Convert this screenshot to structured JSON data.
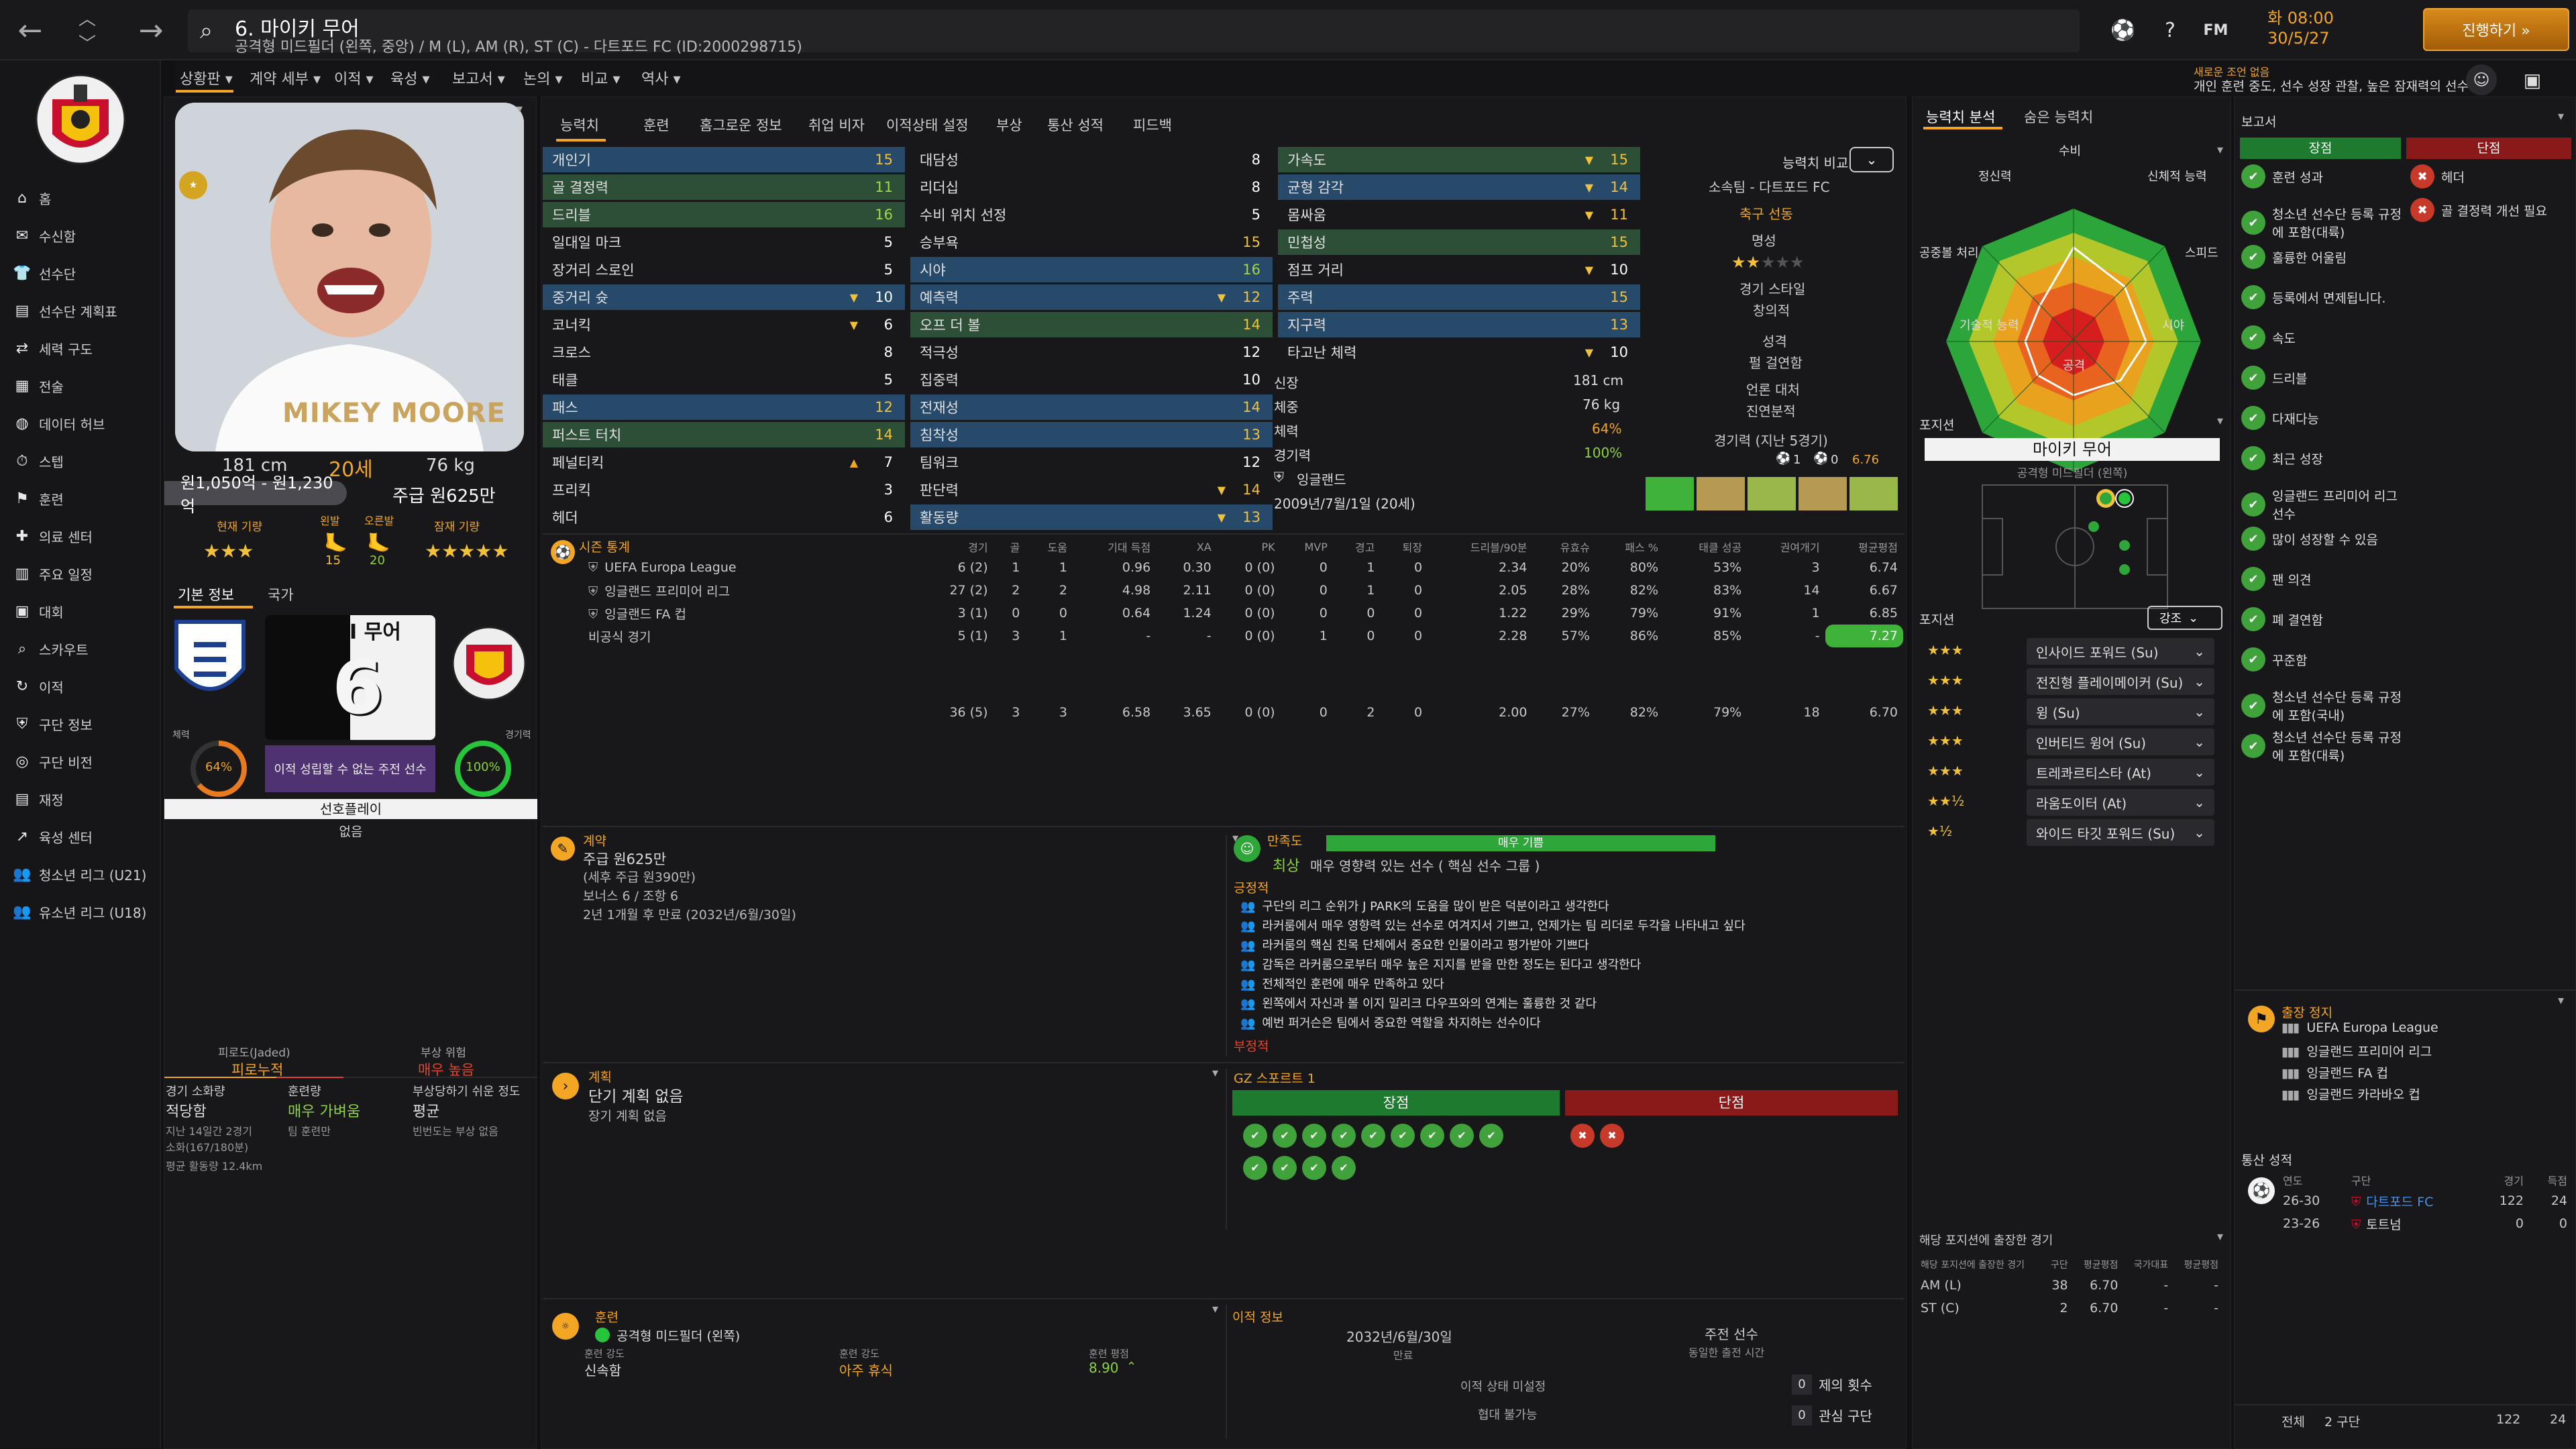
{
  "topbar": {
    "title": "6. 마이키 무어",
    "subtitle": "공격형 미드필더 (왼쪽, 중앙) / M (L), AM (R), ST (C) - 다트포드 FC (ID:2000298715)",
    "icons": {
      "fm_label": "FM"
    },
    "clock_time": "화 08:00",
    "clock_date": "30/5/27",
    "continue_label": "진행하기 »",
    "notice_title": "새로운 조언 없음",
    "notice_text": "개인 훈련 중도, 선수 성장 관찰, 높은 잠재력의 선수"
  },
  "subnav": [
    "상황판 ▾",
    "계약 세부 ▾",
    "이적 ▾",
    "육성 ▾",
    "보고서 ▾",
    "논의 ▾",
    "비교 ▾",
    "역사 ▾"
  ],
  "sidebar": [
    {
      "icon": "⌂",
      "label": "홈"
    },
    {
      "icon": "✉",
      "label": "수신함"
    },
    {
      "icon": "👕",
      "label": "선수단"
    },
    {
      "icon": "▤",
      "label": "선수단 계획표"
    },
    {
      "icon": "⇄",
      "label": "세력 구도"
    },
    {
      "icon": "▦",
      "label": "전술"
    },
    {
      "icon": "◍",
      "label": "데이터 허브"
    },
    {
      "icon": "⏱",
      "label": "스텝"
    },
    {
      "icon": "⚑",
      "label": "훈련"
    },
    {
      "icon": "✚",
      "label": "의료 센터"
    },
    {
      "icon": "▥",
      "label": "주요 일정"
    },
    {
      "icon": "▣",
      "label": "대회"
    },
    {
      "icon": "⌕",
      "label": "스카우트"
    },
    {
      "icon": "↻",
      "label": "이적"
    },
    {
      "icon": "⛨",
      "label": "구단 정보"
    },
    {
      "icon": "◎",
      "label": "구단 비전"
    },
    {
      "icon": "▤",
      "label": "재정"
    },
    {
      "icon": "↗",
      "label": "육성 센터"
    },
    {
      "icon": "👥",
      "label": "청소년 리그 (U21)"
    },
    {
      "icon": "👥",
      "label": "유소년 리그 (U18)"
    }
  ],
  "profile": {
    "photo_caption": "MIKEY MOORE",
    "height": "181 cm",
    "age": "20세",
    "weight": "76 kg",
    "value": "원1,050억 - 원1,230억",
    "wage": "주급 원625만",
    "current_ability": "현재 기량",
    "potential_ability": "잠재 기량",
    "left_foot": "왼발",
    "right_foot": "오른발",
    "left_val": "15",
    "right_val": "20",
    "ca_stars": "★★★",
    "pa_stars": "★★★★★",
    "tab_basic": "기본 정보",
    "tab_nation": "국가",
    "shirt_name": "I 무어",
    "shirt_num": "6",
    "fitness_label": "체력",
    "fitness_val": "64%",
    "sharp_label": "경기력",
    "sharp_val": "100%",
    "status_text": "이적 성립할 수 없는 주전 선수",
    "preferred_label": "선호플레이",
    "preferred_val": "없음",
    "fatigue_title": "피로도(Jaded)",
    "fatigue_val": "피로누적",
    "injury_title": "부상 위험",
    "injury_val": "매우 높음",
    "load_label": "경기 소화량",
    "load_val": "적당함",
    "training_label": "훈련량",
    "training_val": "매우 가벼움",
    "proneness_label": "부상당하기 쉬운 정도",
    "proneness_val": "평균",
    "load_note1": "지난 14일간 2경기",
    "load_note2": "소화(167/180분)",
    "distance": "평균 활동량 12.4km",
    "training_note": "팀 훈련만",
    "proneness_note": "빈번도는 부상 없음"
  },
  "mid": {
    "tabs": [
      "능력치",
      "훈련",
      "홈그로운 정보",
      "취업 비자",
      "이적상태 설정",
      "부상",
      "통산 성적",
      "피드백"
    ],
    "tech": [
      {
        "n": "개인기",
        "v": "15",
        "c": "y",
        "hl": "hl"
      },
      {
        "n": "골 결정력",
        "v": "11",
        "c": "g",
        "hl": "hl2"
      },
      {
        "n": "드리블",
        "v": "16",
        "c": "g",
        "hl": "hl2"
      },
      {
        "n": "일대일 마크",
        "v": "5",
        "c": "w",
        "hl": ""
      },
      {
        "n": "장거리 스로인",
        "v": "5",
        "c": "w",
        "hl": ""
      },
      {
        "n": "중거리 슛",
        "v": "10",
        "c": "w",
        "hl": "hl",
        "a": "▼"
      },
      {
        "n": "코너킥",
        "v": "6",
        "c": "w",
        "hl": "",
        "a": "▼"
      },
      {
        "n": "크로스",
        "v": "8",
        "c": "w",
        "hl": ""
      },
      {
        "n": "태클",
        "v": "5",
        "c": "w",
        "hl": ""
      },
      {
        "n": "패스",
        "v": "12",
        "c": "y",
        "hl": "hl"
      },
      {
        "n": "퍼스트 터치",
        "v": "14",
        "c": "y",
        "hl": "hl2"
      },
      {
        "n": "페널티킥",
        "v": "7",
        "c": "w",
        "hl": "",
        "a": "▲"
      },
      {
        "n": "프리킥",
        "v": "3",
        "c": "w",
        "hl": ""
      },
      {
        "n": "헤더",
        "v": "6",
        "c": "w",
        "hl": ""
      }
    ],
    "mental": [
      {
        "n": "대담성",
        "v": "8",
        "c": "w",
        "hl": ""
      },
      {
        "n": "리더십",
        "v": "8",
        "c": "w",
        "hl": ""
      },
      {
        "n": "수비 위치 선정",
        "v": "5",
        "c": "w",
        "hl": ""
      },
      {
        "n": "승부욕",
        "v": "15",
        "c": "y",
        "hl": ""
      },
      {
        "n": "시야",
        "v": "16",
        "c": "g",
        "hl": "hl"
      },
      {
        "n": "예측력",
        "v": "12",
        "c": "y",
        "hl": "hl",
        "a": "▼"
      },
      {
        "n": "오프 더 볼",
        "v": "14",
        "c": "y",
        "hl": "hl2"
      },
      {
        "n": "적극성",
        "v": "12",
        "c": "w",
        "hl": ""
      },
      {
        "n": "집중력",
        "v": "10",
        "c": "w",
        "hl": ""
      },
      {
        "n": "전재성",
        "v": "14",
        "c": "y",
        "hl": "hl"
      },
      {
        "n": "침착성",
        "v": "13",
        "c": "y",
        "hl": "hl"
      },
      {
        "n": "팀워크",
        "v": "12",
        "c": "w",
        "hl": ""
      },
      {
        "n": "판단력",
        "v": "14",
        "c": "y",
        "hl": "",
        "a": "▼"
      },
      {
        "n": "활동량",
        "v": "13",
        "c": "y",
        "hl": "hl",
        "a": "▼"
      }
    ],
    "physical": [
      {
        "n": "가속도",
        "v": "15",
        "c": "y",
        "hl": "hl2",
        "a": "▼"
      },
      {
        "n": "균형 감각",
        "v": "14",
        "c": "y",
        "hl": "hl",
        "a": "▼"
      },
      {
        "n": "몸싸움",
        "v": "11",
        "c": "y",
        "hl": "",
        "a": "▼"
      },
      {
        "n": "민첩성",
        "v": "15",
        "c": "y",
        "hl": "hl2"
      },
      {
        "n": "점프 거리",
        "v": "10",
        "c": "w",
        "hl": "",
        "a": "▼"
      },
      {
        "n": "주력",
        "v": "15",
        "c": "y",
        "hl": "hl"
      },
      {
        "n": "지구력",
        "v": "13",
        "c": "y",
        "hl": "hl"
      },
      {
        "n": "타고난 체력",
        "v": "10",
        "c": "w",
        "hl": "",
        "a": "▼"
      }
    ],
    "compare_label": "능력치 비교",
    "club_label": "소속팀 - 다트포드 FC",
    "club_link": "축구 선동",
    "rep_label": "명성",
    "rep_stars": "★★",
    "style_label": "경기 스타일",
    "style_val": "창의적",
    "pers_label": "성격",
    "pers_val": "펄 걸연함",
    "media_label": "언론 대처",
    "media_val": "진연분적",
    "form_label": "경기력 (지난 5경기)",
    "form_goals": "1",
    "form_assists": "0",
    "form_rating": "6.76",
    "height_label": "신장",
    "height_val": "181 cm",
    "weight_label": "체중",
    "weight_val": "76 kg",
    "fit_label": "체력",
    "fit_val": "64%",
    "sharp_label": "경기력",
    "sharp_val": "100%",
    "nation": "잉글랜드",
    "dob": "2009년/7월/1일 (20세)",
    "season_label": "시즌 통계",
    "stat_headers": [
      "경기",
      "골",
      "도움",
      "기대 득점",
      "XA",
      "PK",
      "MVP",
      "경고",
      "퇴장",
      "드리블/90분",
      "유효슈",
      "패스 %",
      "태클 성공",
      "권여개기",
      "평균평점"
    ],
    "stat_rows": [
      {
        "c": "UEFA Europa League",
        "v": [
          "6 (2)",
          "1",
          "1",
          "0.96",
          "0.30",
          "0 (0)",
          "0",
          "1",
          "0",
          "2.34",
          "20%",
          "80%",
          "53%",
          "3",
          "6.74"
        ]
      },
      {
        "c": "잉글랜드 프리미어 리그",
        "v": [
          "27 (2)",
          "2",
          "2",
          "4.98",
          "2.11",
          "0 (0)",
          "0",
          "1",
          "0",
          "2.05",
          "28%",
          "82%",
          "83%",
          "14",
          "6.67"
        ]
      },
      {
        "c": "잉글랜드 FA 컵",
        "v": [
          "3 (1)",
          "0",
          "0",
          "0.64",
          "1.24",
          "0 (0)",
          "0",
          "0",
          "0",
          "1.22",
          "29%",
          "79%",
          "91%",
          "1",
          "6.85"
        ]
      },
      {
        "c": "비공식 경기",
        "v": [
          "5 (1)",
          "3",
          "1",
          "-",
          "-",
          "0 (0)",
          "1",
          "0",
          "0",
          "2.28",
          "57%",
          "86%",
          "85%",
          "-",
          "7.27"
        ]
      }
    ],
    "stat_total": [
      "36 (5)",
      "3",
      "3",
      "6.58",
      "3.65",
      "0 (0)",
      "0",
      "2",
      "0",
      "2.00",
      "27%",
      "82%",
      "79%",
      "18",
      "6.70"
    ],
    "contract_label": "계약",
    "contract_wage": "주급 원625만",
    "contract_after": "(세후 주급 원390만)",
    "contract_bonus": "보너스 6 / 조항 6",
    "contract_end": "2년 1개월 후 만료 (2032년/6월/30일)",
    "satisfaction_label": "만족도",
    "satisfaction_bar": "매우 기쁨",
    "satisfaction_level": "최상",
    "satisfaction_text": "매우 영향력 있는 선수 ( 핵심 선수 그룹 )",
    "positive_label": "긍정적",
    "positive_items": [
      "구단의 리그 순위가 J PARK의 도움을 많이 받은 덕분이라고 생각한다",
      "라커룸에서 매우 영향력 있는 선수로 여겨지서 기쁘고, 언제가는 팀 리더로 두각을 나타내고 싶다",
      "라커룸의 핵심 친목 단체에서 중요한 인물이라고 평가받아 기쁘다",
      "감독은 라커룸으로부터 매우 높은 지지를 받을 만한 정도는 된다고 생각한다",
      "전체적인 훈련에 매우 만족하고 있다",
      "왼쪽에서 자신과 볼 이지 밀리크 다우프와의 연계는 훌륭한 것 같다",
      "예번 퍼거슨은 팀에서 중요한 역할을 차지하는 선수이다"
    ],
    "negative_label": "부정적",
    "plan_label": "계획",
    "plan_short": "단기 계획 없음",
    "plan_long": "장기 계획 없음",
    "gz_label": "GZ 스포르트 1",
    "pros_label": "장점",
    "cons_label": "단점",
    "training_label": "훈련",
    "training_focus": "공격형 미드필더 (왼쪽)",
    "intensity_label": "훈련 강도",
    "intensity_val": "신속함",
    "training_rest_label": "훈련 강도",
    "training_rest_val": "아주 휴식",
    "training_rating_label": "훈련 평점",
    "training_rating_val": "8.90",
    "transfer_label": "이적 정보",
    "transfer_date": "2032년/6월/30일",
    "transfer_date_label": "만료",
    "transfer_status": "주전 선수",
    "transfer_status_label": "동일한 출전 시간",
    "transfer_offer_label": "이적 상태 미설정",
    "transfer_fee_label": "협대 불가능",
    "offers_val": "0",
    "offers_label": "제의 횟수",
    "interest_val": "0",
    "interest_label": "관심 구단"
  },
  "right": {
    "tab1": "능력치 분석",
    "tab2": "숨은 능력치",
    "radar": [
      "수비",
      "신체적 능력",
      "스피드",
      "시야",
      "공격",
      "기술적 능력",
      "공중볼 처리",
      "정신력"
    ],
    "position_label": "포지션",
    "pos_name": "마이키 무어",
    "pos_role": "공격형 미드필더 (왼쪽)",
    "roles_label": "포지션",
    "roles_mode": "강조",
    "roles": [
      {
        "s": "★★★",
        "r": "인사이드 포워드 (Su)"
      },
      {
        "s": "★★★",
        "r": "전진형 플레이메이커 (Su)"
      },
      {
        "s": "★★★",
        "r": "윙 (Su)"
      },
      {
        "s": "★★★",
        "r": "인버티드 윙어 (Su)"
      },
      {
        "s": "★★★",
        "r": "트레콰르티스타 (At)"
      },
      {
        "s": "★★½",
        "r": "라움도이터 (At)"
      },
      {
        "s": "★½",
        "r": "와이드 타깃 포워드 (Su)"
      }
    ],
    "apps_label": "해당 포지션에 출장한 경기",
    "apps_headers": [
      "해당 포지션에 출장한 경기",
      "구단",
      "평균평점",
      "국가대표",
      "평균평점"
    ],
    "apps_rows": [
      {
        "p": "AM (L)",
        "a": "38",
        "r": "6.70",
        "n": "-",
        "nr": "-"
      },
      {
        "p": "ST (C)",
        "a": "2",
        "r": "6.70",
        "n": "-",
        "nr": "-"
      }
    ]
  },
  "report": {
    "title": "보고서",
    "pros": "장점",
    "cons": "단점",
    "pros_items": [
      "훈련 성과",
      "청소년 선수단 등록 규정에 포함(대륙)",
      "훌륭한 어울림",
      "등록에서 면제됩니다.",
      "속도",
      "드리블",
      "다재다능",
      "최근 성장",
      "잉글랜드 프리미어 리그 선수",
      "많이 성장할 수 있음",
      "팬 의견",
      "폐 결연함",
      "꾸준함",
      "청소년 선수단 등록 규정에 포함(국내)",
      "청소년 선수단 등록 규정에 포함(대륙)"
    ],
    "cons_items": [
      "헤더",
      "골 결정력 개선 필요"
    ],
    "suspension_title": "출장 정지",
    "suspension_items": [
      "UEFA Europa League",
      "잉글랜드 프리미어 리그",
      "잉글랜드 FA 컵",
      "잉글랜드 카라바오 컵"
    ],
    "career_title": "통산 성적",
    "career_headers": [
      "연도",
      "구단",
      "경기",
      "득점"
    ],
    "career_rows": [
      {
        "y": "26-30",
        "c": "다트포드 FC",
        "g": "122",
        "s": "24"
      },
      {
        "y": "23-26",
        "c": "토트넘",
        "g": "0",
        "s": "0"
      }
    ],
    "career_total_label": "전체",
    "career_total_clubs": "2 구단",
    "career_total_g": "122",
    "career_total_s": "24"
  }
}
